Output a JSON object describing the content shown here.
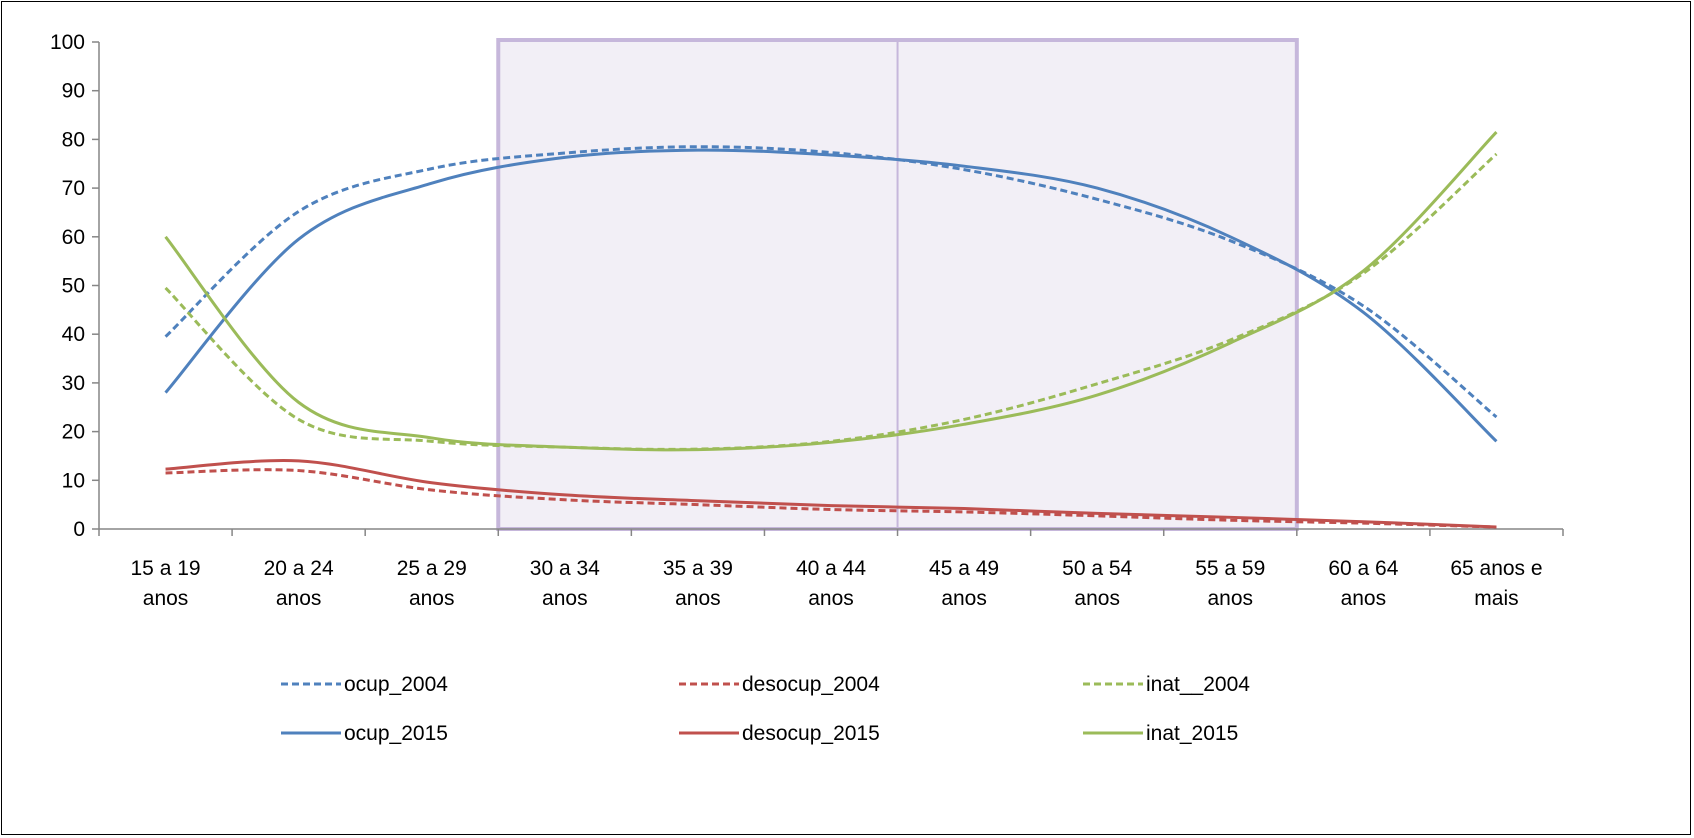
{
  "chart_data": {
    "type": "line",
    "title": "",
    "xlabel": "",
    "ylabel": "",
    "categories": [
      [
        "15 a 19",
        "anos"
      ],
      [
        "20 a 24",
        "anos"
      ],
      [
        "25 a 29",
        "anos"
      ],
      [
        "30 a 34",
        "anos"
      ],
      [
        "35 a 39",
        "anos"
      ],
      [
        "40 a 44",
        "anos"
      ],
      [
        "45 a 49",
        "anos"
      ],
      [
        "50 a 54",
        "anos"
      ],
      [
        "55 a 59",
        "anos"
      ],
      [
        "60 a 64",
        "anos"
      ],
      [
        "65 anos e",
        "mais"
      ]
    ],
    "ylim": [
      0,
      100
    ],
    "yticks": [
      0,
      10,
      20,
      30,
      40,
      50,
      60,
      70,
      80,
      90,
      100
    ],
    "grid": false,
    "legend_position": "bottom",
    "highlight": {
      "x_from": 2.5,
      "x_to": 8.5,
      "divider_at": 5.5,
      "fill": "#f2eff6",
      "stroke": "#c6b7db"
    },
    "series": [
      {
        "name": "ocup_2004",
        "color": "#4f81bd",
        "dash": true,
        "values": [
          39.5,
          65.2,
          74.0,
          77.2,
          78.5,
          77.3,
          73.8,
          67.7,
          59.2,
          45.8,
          23.0
        ]
      },
      {
        "name": "desocup_2004",
        "color": "#c0504d",
        "dash": true,
        "values": [
          11.5,
          12.0,
          8.0,
          6.0,
          5.0,
          4.0,
          3.5,
          2.7,
          1.8,
          1.2,
          0.4
        ]
      },
      {
        "name": "inat__2004",
        "color": "#9bbb59",
        "dash": true,
        "values": [
          49.5,
          22.5,
          18.0,
          16.8,
          16.4,
          18.0,
          22.5,
          29.8,
          38.8,
          52.5,
          77.0
        ]
      },
      {
        "name": "ocup_2015",
        "color": "#4f81bd",
        "dash": false,
        "values": [
          28.0,
          59.5,
          71.0,
          76.3,
          77.8,
          76.8,
          74.5,
          70.0,
          60.0,
          44.5,
          18.0
        ]
      },
      {
        "name": "desocup_2015",
        "color": "#c0504d",
        "dash": false,
        "values": [
          12.3,
          14.0,
          9.5,
          7.0,
          5.8,
          4.8,
          4.2,
          3.2,
          2.4,
          1.5,
          0.4
        ]
      },
      {
        "name": "inat_2015",
        "color": "#9bbb59",
        "dash": false,
        "values": [
          60.0,
          26.0,
          18.7,
          16.8,
          16.3,
          17.8,
          21.5,
          27.5,
          38.2,
          53.0,
          81.5
        ]
      }
    ]
  }
}
